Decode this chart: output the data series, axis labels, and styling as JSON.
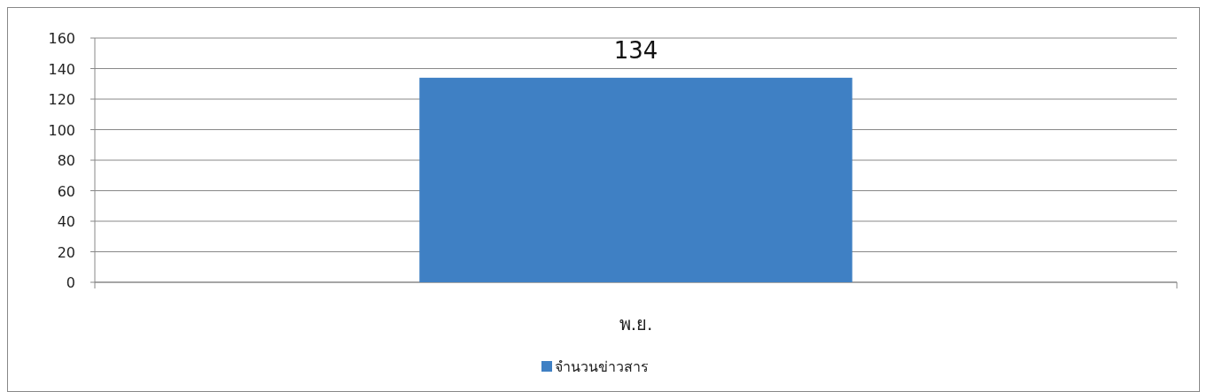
{
  "chart_data": {
    "type": "bar",
    "categories": [
      "พ.ย."
    ],
    "series": [
      {
        "name": "จำนวนข่าวสาร",
        "color": "#3f80c4",
        "values": [
          134
        ]
      }
    ],
    "ylim": [
      0,
      160
    ],
    "yticks": [
      0,
      20,
      40,
      60,
      80,
      100,
      120,
      140,
      160
    ],
    "grid": "y",
    "legend": "bottom",
    "data_labels": true
  }
}
